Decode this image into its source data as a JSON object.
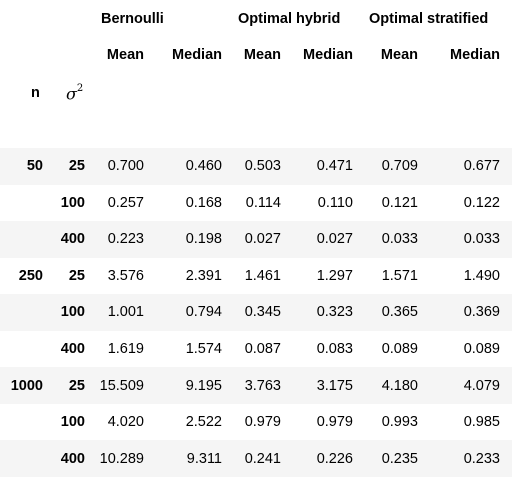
{
  "table": {
    "group_headers": [
      "Bernoulli",
      "Optimal hybrid",
      "Optimal stratified"
    ],
    "stat_headers": [
      "Mean",
      "Median",
      "Mean",
      "Median",
      "Mean",
      "Median"
    ],
    "index_names": {
      "n": "n",
      "sigma": "σ",
      "sigma_exp": "2"
    },
    "rows": [
      {
        "n": "50",
        "s2": "25",
        "values": [
          "0.700",
          "0.460",
          "0.503",
          "0.471",
          "0.709",
          "0.677"
        ]
      },
      {
        "n": "",
        "s2": "100",
        "values": [
          "0.257",
          "0.168",
          "0.114",
          "0.110",
          "0.121",
          "0.122"
        ]
      },
      {
        "n": "",
        "s2": "400",
        "values": [
          "0.223",
          "0.198",
          "0.027",
          "0.027",
          "0.033",
          "0.033"
        ]
      },
      {
        "n": "250",
        "s2": "25",
        "values": [
          "3.576",
          "2.391",
          "1.461",
          "1.297",
          "1.571",
          "1.490"
        ]
      },
      {
        "n": "",
        "s2": "100",
        "values": [
          "1.001",
          "0.794",
          "0.345",
          "0.323",
          "0.365",
          "0.369"
        ]
      },
      {
        "n": "",
        "s2": "400",
        "values": [
          "1.619",
          "1.574",
          "0.087",
          "0.083",
          "0.089",
          "0.089"
        ]
      },
      {
        "n": "1000",
        "s2": "25",
        "values": [
          "15.509",
          "9.195",
          "3.763",
          "3.175",
          "4.180",
          "4.079"
        ]
      },
      {
        "n": "",
        "s2": "100",
        "values": [
          "4.020",
          "2.522",
          "0.979",
          "0.979",
          "0.993",
          "0.985"
        ]
      },
      {
        "n": "",
        "s2": "400",
        "values": [
          "10.289",
          "9.311",
          "0.241",
          "0.226",
          "0.235",
          "0.233"
        ]
      }
    ]
  }
}
